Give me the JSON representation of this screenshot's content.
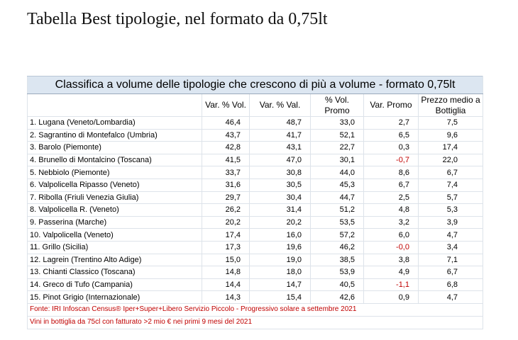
{
  "title": "Tabella Best tipologie, nel formato da 0,75lt",
  "table": {
    "caption": "Classifica a volume delle tipologie che crescono di più a volume - formato 0,75lt",
    "headers": {
      "name": "",
      "var_vol": "Var. % Vol.",
      "var_val": "Var. % Val.",
      "vol_promo": "% Vol. Promo",
      "var_promo": "Var. Promo",
      "price": "Prezzo medio a Bottiglia"
    },
    "rows": [
      {
        "name": "1. Lugana (Veneto/Lombardia)",
        "var_vol": "46,4",
        "var_val": "48,7",
        "vol_promo": "33,0",
        "var_promo": "2,7",
        "price": "7,5"
      },
      {
        "name": "2. Sagrantino di Montefalco (Umbria)",
        "var_vol": "43,7",
        "var_val": "41,7",
        "vol_promo": "52,1",
        "var_promo": "6,5",
        "price": "9,6"
      },
      {
        "name": "3. Barolo (Piemonte)",
        "var_vol": "42,8",
        "var_val": "43,1",
        "vol_promo": "22,7",
        "var_promo": "0,3",
        "price": "17,4"
      },
      {
        "name": "4. Brunello di Montalcino (Toscana)",
        "var_vol": "41,5",
        "var_val": "47,0",
        "vol_promo": "30,1",
        "var_promo": "-0,7",
        "price": "22,0"
      },
      {
        "name": "5. Nebbiolo (Piemonte)",
        "var_vol": "33,7",
        "var_val": "30,8",
        "vol_promo": "44,0",
        "var_promo": "8,6",
        "price": "6,7"
      },
      {
        "name": "6. Valpolicella Ripasso (Veneto)",
        "var_vol": "31,6",
        "var_val": "30,5",
        "vol_promo": "45,3",
        "var_promo": "6,7",
        "price": "7,4"
      },
      {
        "name": "7. Ribolla (Friuli Venezia Giulia)",
        "var_vol": "29,7",
        "var_val": "30,4",
        "vol_promo": "44,7",
        "var_promo": "2,5",
        "price": "5,7"
      },
      {
        "name": "8. Valpolicella R. (Veneto)",
        "var_vol": "26,2",
        "var_val": "31,4",
        "vol_promo": "51,2",
        "var_promo": "4,8",
        "price": "5,3"
      },
      {
        "name": "9. Passerina (Marche)",
        "var_vol": "20,2",
        "var_val": "20,2",
        "vol_promo": "53,5",
        "var_promo": "3,2",
        "price": "3,9"
      },
      {
        "name": "10. Valpolicella (Veneto)",
        "var_vol": "17,4",
        "var_val": "16,0",
        "vol_promo": "57,2",
        "var_promo": "6,0",
        "price": "4,7"
      },
      {
        "name": "11. Grillo (Sicilia)",
        "var_vol": "17,3",
        "var_val": "19,6",
        "vol_promo": "46,2",
        "var_promo": "-0,0",
        "price": "3,4"
      },
      {
        "name": "12. Lagrein (Trentino Alto Adige)",
        "var_vol": "15,0",
        "var_val": "19,0",
        "vol_promo": "38,5",
        "var_promo": "3,8",
        "price": "7,1"
      },
      {
        "name": "13. Chianti Classico (Toscana)",
        "var_vol": "14,8",
        "var_val": "18,0",
        "vol_promo": "53,9",
        "var_promo": "4,9",
        "price": "6,7"
      },
      {
        "name": "14. Greco di Tufo (Campania)",
        "var_vol": "14,4",
        "var_val": "14,7",
        "vol_promo": "40,5",
        "var_promo": "-1,1",
        "price": "6,8"
      },
      {
        "name": "15. Pinot Grigio (Internazionale)",
        "var_vol": "14,3",
        "var_val": "15,4",
        "vol_promo": "42,6",
        "var_promo": "0,9",
        "price": "4,7"
      }
    ],
    "source_note": "Fonte: IRI Infoscan Census® Iper+Super+Libero Servizio Piccolo - Progressivo solare a settembre 2021",
    "scope_note": "Vini in bottiglia da 75cl con fatturato >2 mio € nei primi 9 mesi del 2021"
  },
  "colors": {
    "caption_background": "#dce6f1",
    "negative_value": "#c00000",
    "note_text": "#c00000"
  }
}
